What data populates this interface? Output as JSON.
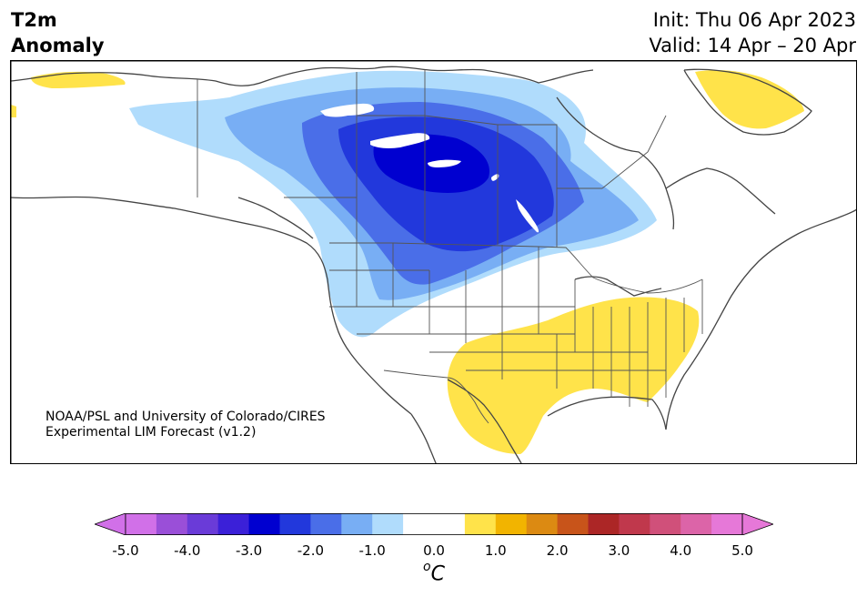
{
  "title": {
    "variable": "T2m",
    "quantity": "Anomaly"
  },
  "init_text": "Init: Thu 06 Apr 2023",
  "valid_text": "Valid: 14 Apr – 20 Apr",
  "credit": {
    "line1": "NOAA/PSL and University of Colorado/CIRES",
    "line2": "Experimental LIM Forecast (v1.2)"
  },
  "colorbar": {
    "unit_base": "C",
    "unit_sup": "o",
    "tick_labels": [
      "-5.0",
      "-4.0",
      "-3.0",
      "-2.0",
      "-1.0",
      "0.0",
      "1.0",
      "2.0",
      "3.0",
      "4.0",
      "5.0"
    ],
    "tick_values": [
      -5,
      -4,
      -3,
      -2,
      -1,
      0,
      1,
      2,
      3,
      4,
      5
    ],
    "range": [
      -5,
      5
    ],
    "step": 0.5,
    "colors": [
      "#d170e8",
      "#9a4fd8",
      "#6a3bd8",
      "#3b20d8",
      "#0000d0",
      "#2238dc",
      "#4a6ee8",
      "#78aef4",
      "#b0dcfc",
      "#ffffff",
      "#ffffff",
      "#ffe34a",
      "#f2b400",
      "#dc8a12",
      "#c8541a",
      "#ac2626",
      "#c0384c",
      "#d0507a",
      "#dc64a8",
      "#e678d8"
    ],
    "extend_min_color": "#d170e8",
    "extend_max_color": "#e678d8"
  },
  "map_regions": {
    "region": "North America",
    "cold_anomaly_center": "south-central Canada / northern Great Plains",
    "cold_anomaly_min": -3.0,
    "warm_anomaly_regions": [
      "southern Plains / Texas",
      "southeastern United States",
      "western Greenland",
      "northern Alaska coast"
    ],
    "warm_anomaly_max": 1.0,
    "colors": {
      "cold_1": "#b0dcfc",
      "cold_2": "#78aef4",
      "cold_3": "#4a6ee8",
      "cold_4": "#2238dc",
      "cold_5": "#0000d0",
      "warm_1": "#ffe34a",
      "coastline": "#444444"
    }
  }
}
